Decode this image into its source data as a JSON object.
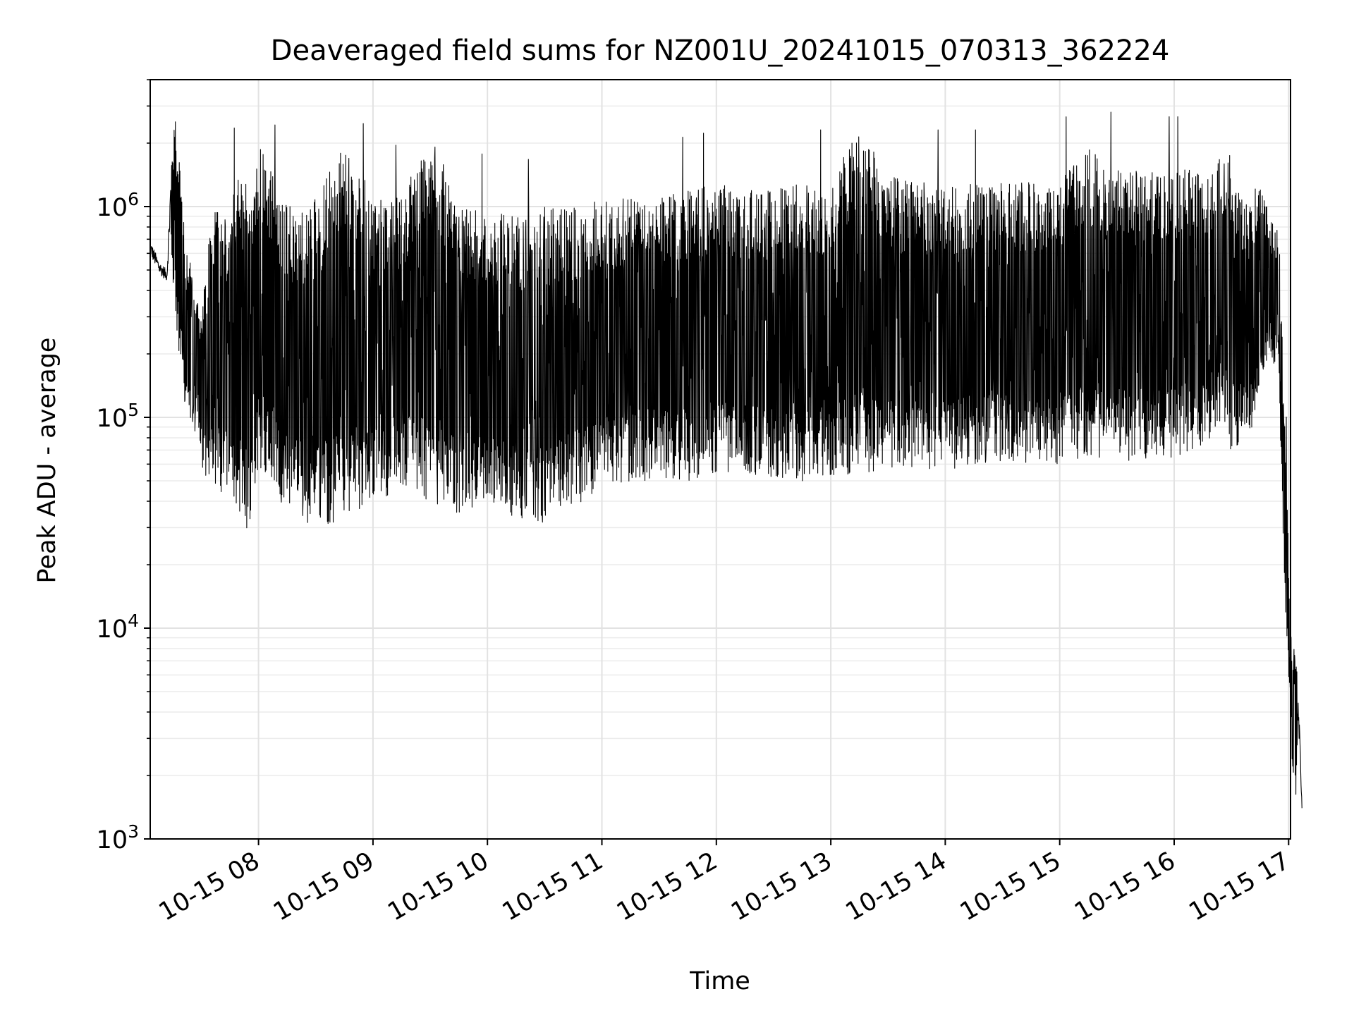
{
  "chart_data": {
    "type": "line",
    "title": "Deaveraged field sums for NZ001U_20241015_070313_362224",
    "xlabel": "Time",
    "ylabel": "Peak ADU - average",
    "yscale": "log",
    "ylim": [
      1000,
      4000000
    ],
    "xlim": [
      "2024-10-15T07:03:13",
      "2024-10-15T17:01:00"
    ],
    "x_ticks": [
      {
        "value": "2024-10-15T08:00",
        "label": "10-15 08"
      },
      {
        "value": "2024-10-15T09:00",
        "label": "10-15 09"
      },
      {
        "value": "2024-10-15T10:00",
        "label": "10-15 10"
      },
      {
        "value": "2024-10-15T11:00",
        "label": "10-15 11"
      },
      {
        "value": "2024-10-15T12:00",
        "label": "10-15 12"
      },
      {
        "value": "2024-10-15T13:00",
        "label": "10-15 13"
      },
      {
        "value": "2024-10-15T14:00",
        "label": "10-15 14"
      },
      {
        "value": "2024-10-15T15:00",
        "label": "10-15 15"
      },
      {
        "value": "2024-10-15T16:00",
        "label": "10-15 16"
      },
      {
        "value": "2024-10-15T17:00",
        "label": "10-15 17"
      }
    ],
    "y_ticks": [
      {
        "value": 1000,
        "base": "10",
        "exp": "3"
      },
      {
        "value": 10000,
        "base": "10",
        "exp": "4"
      },
      {
        "value": 100000,
        "base": "10",
        "exp": "5"
      },
      {
        "value": 1000000,
        "base": "10",
        "exp": "6"
      }
    ],
    "grid": true,
    "legend": "none",
    "line_color": "#000000",
    "series": [
      {
        "x": [
          "2024-10-15T07:03",
          "2024-10-15T07:08",
          "2024-10-15T07:12",
          "2024-10-15T07:14",
          "2024-10-15T07:16",
          "2024-10-15T07:20",
          "2024-10-15T07:22",
          "2024-10-15T07:26",
          "2024-10-15T07:30",
          "2024-10-15T07:35",
          "2024-10-15T07:40",
          "2024-10-15T07:45",
          "2024-10-15T07:50",
          "2024-10-15T07:55",
          "2024-10-15T08:00",
          "2024-10-15T08:15",
          "2024-10-15T08:30",
          "2024-10-15T08:45",
          "2024-10-15T09:00",
          "2024-10-15T09:15",
          "2024-10-15T09:30",
          "2024-10-15T09:45",
          "2024-10-15T10:00",
          "2024-10-15T10:15",
          "2024-10-15T10:30",
          "2024-10-15T10:45",
          "2024-10-15T11:00",
          "2024-10-15T11:15",
          "2024-10-15T11:30",
          "2024-10-15T11:45",
          "2024-10-15T12:00",
          "2024-10-15T12:15",
          "2024-10-15T12:30",
          "2024-10-15T12:45",
          "2024-10-15T13:00",
          "2024-10-15T13:15",
          "2024-10-15T13:30",
          "2024-10-15T13:45",
          "2024-10-15T14:00",
          "2024-10-15T14:15",
          "2024-10-15T14:30",
          "2024-10-15T14:45",
          "2024-10-15T15:00",
          "2024-10-15T15:15",
          "2024-10-15T15:30",
          "2024-10-15T15:45",
          "2024-10-15T16:00",
          "2024-10-15T16:15",
          "2024-10-15T16:25",
          "2024-10-15T16:30",
          "2024-10-15T16:35",
          "2024-10-15T16:40",
          "2024-10-15T16:45",
          "2024-10-15T16:50",
          "2024-10-15T16:55",
          "2024-10-15T16:58",
          "2024-10-15T17:00",
          "2024-10-15T17:01",
          "2024-10-15T17:02",
          "2024-10-15T17:04",
          "2024-10-15T17:05",
          "2024-10-15T17:06",
          "2024-10-15T17:07"
        ],
        "low": [
          550000,
          450000,
          420000,
          700000,
          300000,
          150000,
          100000,
          90000,
          60000,
          45000,
          40000,
          50000,
          30000,
          28000,
          60000,
          35000,
          30000,
          32000,
          40000,
          45000,
          40000,
          35000,
          38000,
          32000,
          30000,
          38000,
          45000,
          50000,
          50000,
          50000,
          55000,
          55000,
          50000,
          50000,
          50000,
          55000,
          55000,
          55000,
          55000,
          60000,
          60000,
          60000,
          60000,
          65000,
          62000,
          62000,
          65000,
          70000,
          100000,
          60000,
          80000,
          80000,
          150000,
          200000,
          150000,
          9000,
          6000,
          4500,
          2000,
          1500,
          3500,
          2000,
          1400
        ],
        "high": [
          700000,
          550000,
          500000,
          1500000,
          2800000,
          1200000,
          600000,
          500000,
          300000,
          900000,
          1000000,
          900000,
          2100000,
          1000000,
          2100000,
          1000000,
          1100000,
          2200000,
          1100000,
          1100000,
          2400000,
          1000000,
          1000000,
          900000,
          1000000,
          1000000,
          1100000,
          1100000,
          1200000,
          1200000,
          1300000,
          1200000,
          1200000,
          1300000,
          1300000,
          2600000,
          1400000,
          1300000,
          1300000,
          1300000,
          1300000,
          1300000,
          1400000,
          1900000,
          1500000,
          1500000,
          1500000,
          1500000,
          1700000,
          1800000,
          1200000,
          1000000,
          1600000,
          900000,
          800000,
          100000,
          23000,
          10000,
          9000,
          7000,
          5000,
          3000,
          1400
        ]
      }
    ]
  }
}
